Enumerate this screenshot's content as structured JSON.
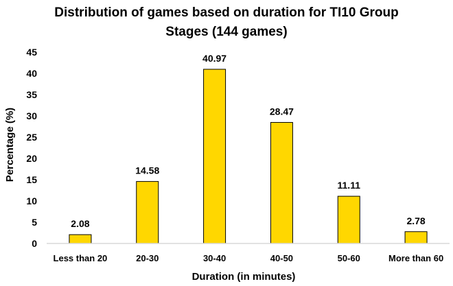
{
  "chart_data": {
    "type": "bar",
    "title_lines": [
      "Distribution of games based on duration for TI10 Group",
      "Stages (144 games)"
    ],
    "xlabel": "Duration (in minutes)",
    "ylabel": "Percentage (%)",
    "categories": [
      "Less than 20",
      "20-30",
      "30-40",
      "40-50",
      "50-60",
      "More than 60"
    ],
    "values": [
      2.08,
      14.58,
      40.97,
      28.47,
      11.11,
      2.78
    ],
    "data_labels": [
      "2.08",
      "14.58",
      "40.97",
      "28.47",
      "11.11",
      "2.78"
    ],
    "ylim": [
      0,
      45
    ],
    "yticks": [
      0,
      5,
      10,
      15,
      20,
      25,
      30,
      35,
      40,
      45
    ],
    "grid": false,
    "legend": "none",
    "colors": {
      "bar_fill": "#FFD700",
      "bar_stroke": "#000000",
      "axis": "#D9D9D9",
      "text": "#000000"
    }
  }
}
